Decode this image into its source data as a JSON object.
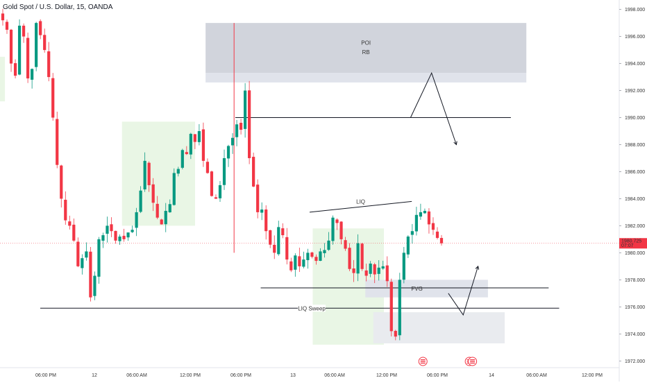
{
  "chart_data": {
    "type": "candlestick",
    "title": "Gold Spot / U.S. Dollar, 15, OANDA",
    "y_axis": {
      "position": "right",
      "ylim": [
        1971.5,
        1998.7
      ],
      "ticks": [
        "1998.000",
        "1996.000",
        "1994.000",
        "1992.000",
        "1990.000",
        "1988.000",
        "1986.000",
        "1984.000",
        "1982.000",
        "1980.000",
        "1978.000",
        "1976.000",
        "1974.000",
        "1972.000"
      ]
    },
    "x_axis": {
      "labels": [
        "06:00 PM",
        "12",
        "06:00 AM",
        "12:00 PM",
        "06:00 PM",
        "13",
        "06:00 AM",
        "12:00 PM",
        "06:00 PM",
        "14",
        "06:00 AM",
        "12:00 PM"
      ]
    },
    "price": {
      "value": 1980.725,
      "label": "1980.725",
      "countdown": "07:07",
      "color": "#f23645"
    },
    "colors": {
      "up": "#089981",
      "down": "#f23645"
    },
    "close_path": [
      1997.2,
      1996.5,
      1994.0,
      1993.1,
      1996.8,
      1996.0,
      1992.9,
      1993.6,
      1997.0,
      1996.1,
      1995.0,
      1993.0,
      1990.0,
      1986.5,
      1984.0,
      1982.4,
      1982.0,
      1980.9,
      1979.0,
      1979.6,
      1980.1,
      1976.7,
      1978.3,
      1981.0,
      1981.3,
      1982.0,
      1981.6,
      1980.9,
      1981.2,
      1981.0,
      1981.5,
      1981.7,
      1983.0,
      1984.6,
      1986.8,
      1985.0,
      1983.7,
      1982.6,
      1982.1,
      1983.1,
      1983.6,
      1985.9,
      1986.2,
      1987.6,
      1987.3,
      1988.8,
      1988.2,
      1989.0,
      1986.8,
      1985.9,
      1984.2,
      1984.0,
      1985.0,
      1987.0,
      1987.9,
      1988.5,
      1989.5,
      1989.1,
      1992.0,
      1987.0,
      1984.9,
      1983.0,
      1983.2,
      1981.6,
      1980.6,
      1980.0,
      1981.9,
      1981.3,
      1979.5,
      1978.7,
      1979.8,
      1979.0,
      1979.5,
      1980.0,
      1979.7,
      1979.4,
      1980.1,
      1980.2,
      1980.9,
      1982.6,
      1982.2,
      1981.0,
      1980.3,
      1978.8,
      1978.5,
      1980.7,
      1978.8,
      1978.3,
      1979.2,
      1978.4,
      1978.9,
      1979.0,
      1977.9,
      1974.2,
      1973.8,
      1978.0,
      1980.0,
      1981.2,
      1981.6,
      1982.8,
      1983.0,
      1983.1,
      1982.1,
      1981.7,
      1981.1,
      1980.7
    ],
    "boxes": [
      {
        "kind": "POI",
        "top": 1997.0,
        "bottom": 1992.6,
        "split": 1993.3,
        "x0": 0.332,
        "x1": 0.85,
        "color": "#d1d4dc"
      },
      {
        "kind": "FVG",
        "top": 1978.0,
        "bottom": 1976.7,
        "x0": 0.59,
        "x1": 0.788,
        "color": "#e0e3eb"
      },
      {
        "kind": "demand",
        "top": 1975.6,
        "bottom": 1973.3,
        "x0": 0.603,
        "x1": 0.815,
        "color": "#e9ebef"
      }
    ],
    "zones": [
      {
        "top": 1989.7,
        "bottom": 1982.0,
        "x0": 0.197,
        "x1": 0.315,
        "color": "#e9f6e5"
      },
      {
        "top": 1981.8,
        "bottom": 1973.2,
        "x0": 0.505,
        "x1": 0.62,
        "color": "#e9f6e5"
      },
      {
        "top": 1994.5,
        "bottom": 1991.2,
        "x0": 0.0,
        "x1": 0.008,
        "color": "#e9f6e5"
      }
    ],
    "hlines": [
      {
        "y": 1990.0,
        "x0": 0.38,
        "x1": 0.825
      },
      {
        "y": 1977.4,
        "x0": 0.421,
        "x1": 0.886
      },
      {
        "y": 1975.9,
        "x0": 0.065,
        "x1": 0.903
      }
    ],
    "trendlines": [
      {
        "x0": 0.5,
        "y0": 1983.0,
        "x1": 0.665,
        "y1": 1983.8,
        "label": "LIQ"
      }
    ],
    "vline": {
      "x": 0.378,
      "y0": 1997.0,
      "y1": 1980.0,
      "color": "#f23645"
    },
    "arrows": [
      {
        "points": [
          [
            0.663,
            1990.0
          ],
          [
            0.697,
            1993.3
          ],
          [
            0.737,
            1988.0
          ]
        ]
      },
      {
        "points": [
          [
            0.724,
            1977.0
          ],
          [
            0.748,
            1975.4
          ],
          [
            0.772,
            1979.0
          ]
        ]
      }
    ],
    "labels": {
      "poi": "POI",
      "rb": "RB",
      "fvg": "FVG",
      "liq": "LIQ",
      "liq_sweep": "LIQ Sweep"
    },
    "events": [
      {
        "x": 0.683
      },
      {
        "x": 0.758
      },
      {
        "x": 0.763
      }
    ]
  }
}
